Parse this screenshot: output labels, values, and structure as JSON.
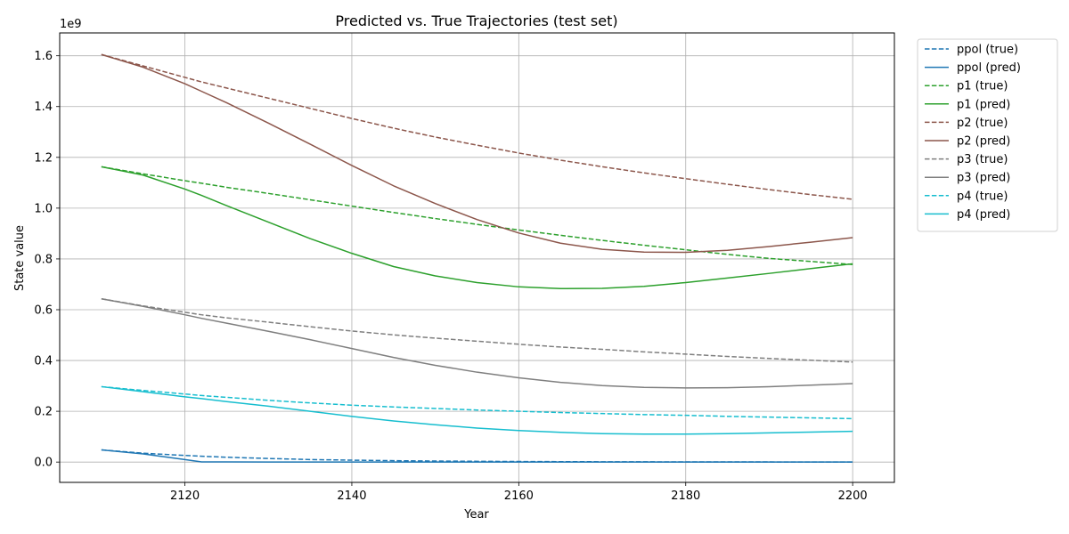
{
  "chart_data": {
    "type": "line",
    "title": "Predicted vs. True Trajectories (test set)",
    "xlabel": "Year",
    "ylabel": "State value",
    "y_scale_label": "1e9",
    "xlim": [
      2105,
      2205
    ],
    "ylim": [
      -80000000,
      1690000000
    ],
    "x_ticks": [
      2120,
      2140,
      2160,
      2180,
      2200
    ],
    "y_ticks": [
      0.0,
      0.2,
      0.4,
      0.6,
      0.8,
      1.0,
      1.2,
      1.4,
      1.6
    ],
    "y_tick_labels": [
      "0.0",
      "0.2",
      "0.4",
      "0.6",
      "0.8",
      "1.0",
      "1.2",
      "1.4",
      "1.6"
    ],
    "grid": true,
    "legend_position": "outside-top-right",
    "x": [
      2110,
      2115,
      2120,
      2122,
      2125,
      2130,
      2135,
      2140,
      2145,
      2150,
      2155,
      2160,
      2165,
      2170,
      2175,
      2180,
      2185,
      2190,
      2195,
      2200
    ],
    "series": [
      {
        "name": "ppol (true)",
        "color": "#1f77b4",
        "dash": true,
        "values": [
          48000000,
          35000000,
          26000000,
          23000000,
          19000000,
          14000000,
          10000000,
          7500000,
          5500000,
          4000000,
          3000000,
          2200000,
          1600000,
          1200000,
          900000,
          700000,
          500000,
          400000,
          300000,
          200000
        ]
      },
      {
        "name": "ppol (pred)",
        "color": "#1f77b4",
        "dash": false,
        "values": [
          48000000,
          32000000,
          10000000,
          500000,
          400000,
          300000,
          250000,
          200000,
          180000,
          160000,
          150000,
          140000,
          130000,
          120000,
          110000,
          100000,
          90000,
          80000,
          70000,
          60000
        ]
      },
      {
        "name": "p1 (true)",
        "color": "#2ca02c",
        "dash": true,
        "values": [
          1163000000,
          1135000000,
          1108000000,
          1098000000,
          1082000000,
          1058000000,
          1033000000,
          1008000000,
          983000000,
          959000000,
          936000000,
          914000000,
          893000000,
          873000000,
          854000000,
          836000000,
          818000000,
          802000000,
          790000000,
          778000000
        ]
      },
      {
        "name": "p1 (pred)",
        "color": "#2ca02c",
        "dash": false,
        "values": [
          1163000000,
          1130000000,
          1075000000,
          1050000000,
          1010000000,
          945000000,
          880000000,
          822000000,
          770000000,
          733000000,
          707000000,
          690000000,
          683000000,
          684000000,
          692000000,
          707000000,
          725000000,
          743000000,
          762000000,
          781000000
        ]
      },
      {
        "name": "p2 (true)",
        "color": "#8c564b",
        "dash": true,
        "values": [
          1605000000,
          1560000000,
          1515000000,
          1497000000,
          1473000000,
          1433000000,
          1393000000,
          1353000000,
          1315000000,
          1280000000,
          1248000000,
          1217000000,
          1189000000,
          1163000000,
          1139000000,
          1116000000,
          1094000000,
          1073000000,
          1053000000,
          1035000000
        ]
      },
      {
        "name": "p2 (pred)",
        "color": "#8c564b",
        "dash": false,
        "values": [
          1605000000,
          1555000000,
          1490000000,
          1460000000,
          1415000000,
          1335000000,
          1252000000,
          1168000000,
          1088000000,
          1018000000,
          955000000,
          902000000,
          862000000,
          838000000,
          827000000,
          826000000,
          834000000,
          849000000,
          866000000,
          884000000
        ]
      },
      {
        "name": "p3 (true)",
        "color": "#7f7f7f",
        "dash": true,
        "values": [
          643000000,
          615000000,
          590000000,
          580000000,
          568000000,
          551000000,
          533000000,
          516000000,
          501000000,
          488000000,
          476000000,
          464000000,
          453000000,
          444000000,
          434000000,
          425000000,
          416000000,
          408000000,
          401000000,
          394000000
        ]
      },
      {
        "name": "p3 (pred)",
        "color": "#7f7f7f",
        "dash": false,
        "values": [
          643000000,
          613000000,
          580000000,
          566000000,
          547000000,
          515000000,
          482000000,
          447000000,
          412000000,
          381000000,
          354000000,
          332000000,
          314000000,
          301000000,
          294000000,
          292000000,
          293000000,
          297000000,
          303000000,
          309000000
        ]
      },
      {
        "name": "p4 (true)",
        "color": "#17becf",
        "dash": true,
        "values": [
          297000000,
          282000000,
          268000000,
          262000000,
          255000000,
          243000000,
          233000000,
          224000000,
          217000000,
          211000000,
          205000000,
          200000000,
          195000000,
          191000000,
          187000000,
          184000000,
          180000000,
          177000000,
          174000000,
          171000000
        ]
      },
      {
        "name": "p4 (pred)",
        "color": "#17becf",
        "dash": false,
        "values": [
          297000000,
          277000000,
          257000000,
          250000000,
          238000000,
          220000000,
          200000000,
          180000000,
          162000000,
          147000000,
          134000000,
          124000000,
          117000000,
          112000000,
          110000000,
          110000000,
          112000000,
          115000000,
          118000000,
          121000000
        ]
      }
    ]
  }
}
